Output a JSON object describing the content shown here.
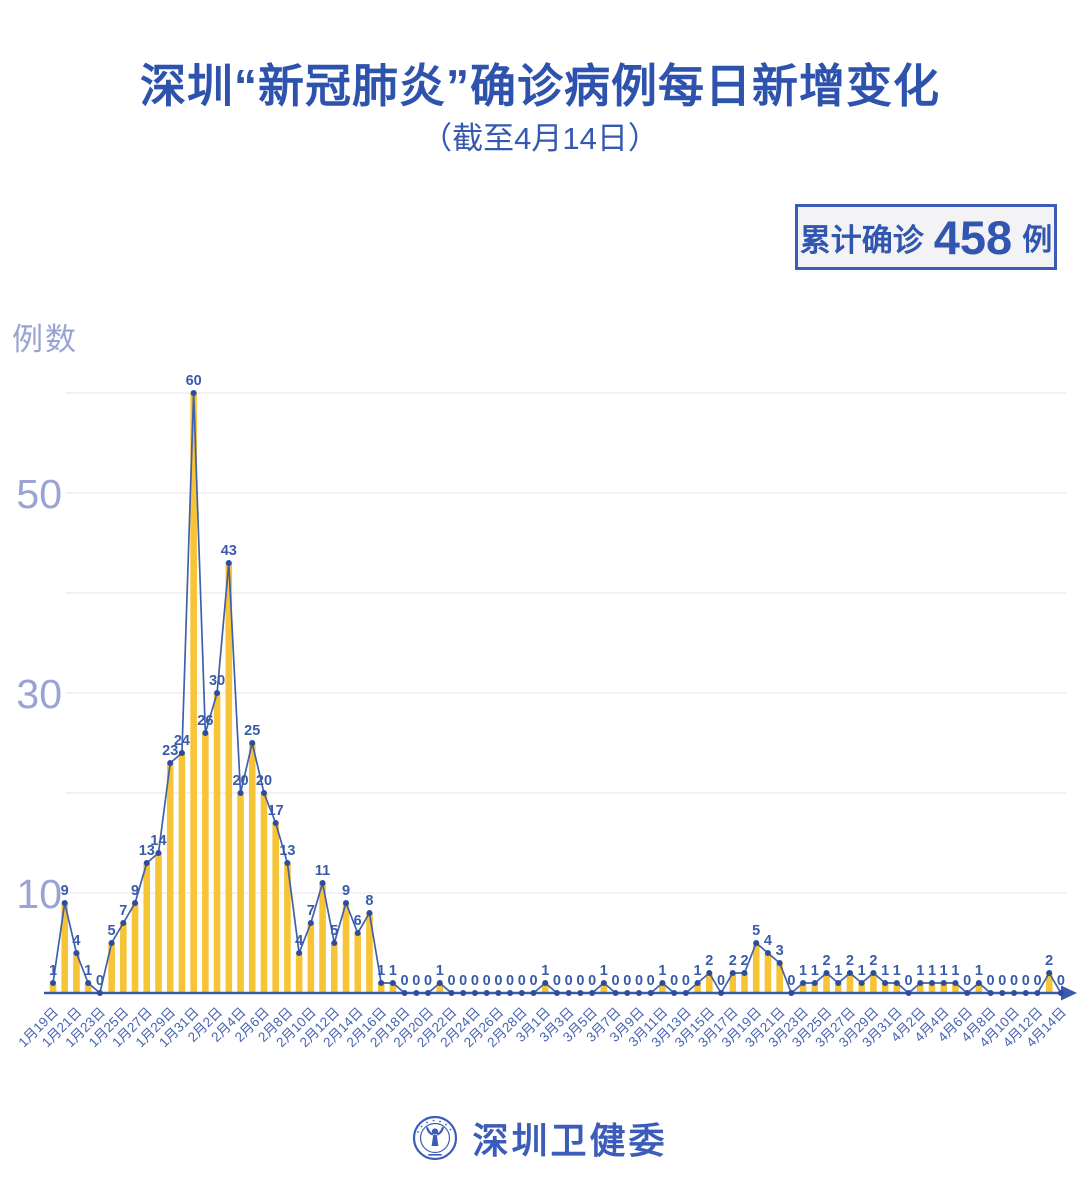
{
  "badge": {
    "prefix": "累计确诊",
    "count": "458",
    "unit": "例"
  },
  "footer": {
    "brand": "深圳卫健委",
    "logo": "shenzhen-health-commission-emblem"
  },
  "chart_data": {
    "type": "bar+line",
    "title": "深圳“新冠肺炎”确诊病例每日新增变化",
    "subtitle": "（截至4月14日）",
    "ylabel": "例数",
    "xlabel": "",
    "ylim": [
      0,
      60
    ],
    "gridlines": [
      10,
      20,
      30,
      40,
      50,
      60
    ],
    "yticks_labeled": [
      10,
      30,
      50
    ],
    "x_tick_every": 2,
    "legend": "none",
    "categories": [
      "1月19日",
      "1月20日",
      "1月21日",
      "1月22日",
      "1月23日",
      "1月24日",
      "1月25日",
      "1月26日",
      "1月27日",
      "1月28日",
      "1月29日",
      "1月30日",
      "1月31日",
      "2月1日",
      "2月2日",
      "2月3日",
      "2月4日",
      "2月5日",
      "2月6日",
      "2月7日",
      "2月8日",
      "2月9日",
      "2月10日",
      "2月11日",
      "2月12日",
      "2月13日",
      "2月14日",
      "2月15日",
      "2月16日",
      "2月17日",
      "2月18日",
      "2月19日",
      "2月20日",
      "2月21日",
      "2月22日",
      "2月23日",
      "2月24日",
      "2月25日",
      "2月26日",
      "2月27日",
      "2月28日",
      "2月29日",
      "3月1日",
      "3月2日",
      "3月3日",
      "3月4日",
      "3月5日",
      "3月6日",
      "3月7日",
      "3月8日",
      "3月9日",
      "3月10日",
      "3月11日",
      "3月12日",
      "3月13日",
      "3月14日",
      "3月15日",
      "3月16日",
      "3月17日",
      "3月18日",
      "3月19日",
      "3月20日",
      "3月21日",
      "3月22日",
      "3月23日",
      "3月24日",
      "3月25日",
      "3月26日",
      "3月27日",
      "3月28日",
      "3月29日",
      "3月30日",
      "3月31日",
      "4月1日",
      "4月2日",
      "4月3日",
      "4月4日",
      "4月5日",
      "4月6日",
      "4月7日",
      "4月8日",
      "4月9日",
      "4月10日",
      "4月11日",
      "4月12日",
      "4月13日",
      "4月14日"
    ],
    "values": [
      1,
      9,
      4,
      1,
      0,
      5,
      7,
      9,
      13,
      14,
      23,
      24,
      60,
      26,
      30,
      43,
      20,
      25,
      20,
      17,
      13,
      4,
      7,
      11,
      5,
      9,
      6,
      8,
      1,
      1,
      0,
      0,
      0,
      1,
      0,
      0,
      0,
      0,
      0,
      0,
      0,
      0,
      1,
      0,
      0,
      0,
      0,
      1,
      0,
      0,
      0,
      0,
      1,
      0,
      0,
      1,
      2,
      0,
      2,
      2,
      5,
      4,
      3,
      0,
      1,
      1,
      2,
      1,
      2,
      1,
      2,
      1,
      1,
      0,
      1,
      1,
      1,
      1,
      0,
      1,
      0,
      0,
      0,
      0,
      0,
      2,
      0
    ],
    "cumulative_total": 458,
    "colors": {
      "bar": "#F7C437",
      "line": "#4060AB",
      "marker": "#2C4D9E",
      "value_label": "#3A5BA9",
      "axis": "#3A5BA9",
      "grid": "#E9E9F0",
      "y_tick_text": "#99A3D4",
      "x_tick_text": "#4663B3",
      "title": "#2E53AD",
      "badge_border": "#3B5CB8"
    }
  }
}
